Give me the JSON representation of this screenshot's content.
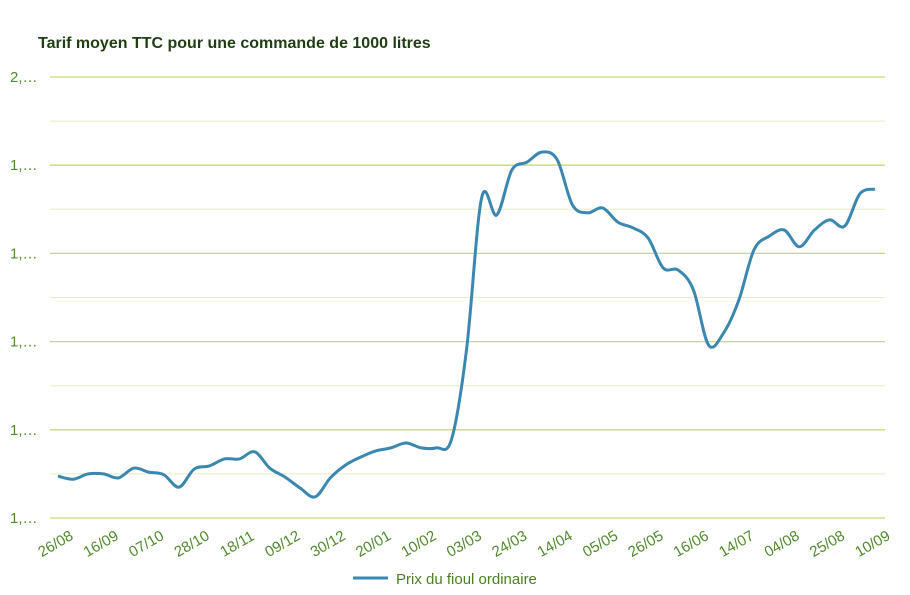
{
  "chart_data": {
    "type": "line",
    "title": "Tarif moyen TTC pour une commande de 1000 litres",
    "categories": [
      "26/08",
      null,
      null,
      "16/09",
      null,
      null,
      "07/10",
      null,
      null,
      "28/10",
      null,
      null,
      "18/11",
      null,
      null,
      "09/12",
      null,
      null,
      "30/12",
      null,
      null,
      "20/01",
      null,
      null,
      "10/02",
      null,
      null,
      "03/03",
      null,
      null,
      "24/03",
      null,
      null,
      "14/04",
      null,
      null,
      "05/05",
      null,
      null,
      "26/05",
      null,
      null,
      "16/06",
      null,
      null,
      "14/07",
      null,
      null,
      "04/08",
      null,
      null,
      "25/08",
      null,
      null,
      "10/09"
    ],
    "series": [
      {
        "name": "Prix du fioul ordinaire",
        "color": "#3a87b0",
        "values": [
          1.095,
          1.088,
          1.1,
          1.1,
          1.091,
          1.113,
          1.104,
          1.098,
          1.07,
          1.111,
          1.118,
          1.134,
          1.134,
          1.15,
          1.113,
          1.093,
          1.068,
          1.048,
          1.091,
          1.12,
          1.138,
          1.152,
          1.159,
          1.17,
          1.159,
          1.159,
          1.177,
          1.381,
          1.726,
          1.687,
          1.789,
          1.807,
          1.83,
          1.812,
          1.71,
          1.692,
          1.703,
          1.671,
          1.658,
          1.635,
          1.567,
          1.562,
          1.517,
          1.392,
          1.42,
          1.494,
          1.608,
          1.639,
          1.653,
          1.615,
          1.653,
          1.676,
          1.662,
          1.735,
          1.746
        ]
      }
    ],
    "ylim": [
      1.0,
      2.0
    ],
    "yticks": [
      {
        "value": 1.0,
        "label": "1,…"
      },
      {
        "value": 1.2,
        "label": "1,…"
      },
      {
        "value": 1.4,
        "label": "1,…"
      },
      {
        "value": 1.6,
        "label": "1,…"
      },
      {
        "value": 1.8,
        "label": "1,…"
      },
      {
        "value": 2.0,
        "label": "2,…"
      }
    ],
    "minor_yticks": [
      1.1,
      1.3,
      1.5,
      1.7,
      1.9
    ],
    "grid": true,
    "legend": "bottom"
  }
}
